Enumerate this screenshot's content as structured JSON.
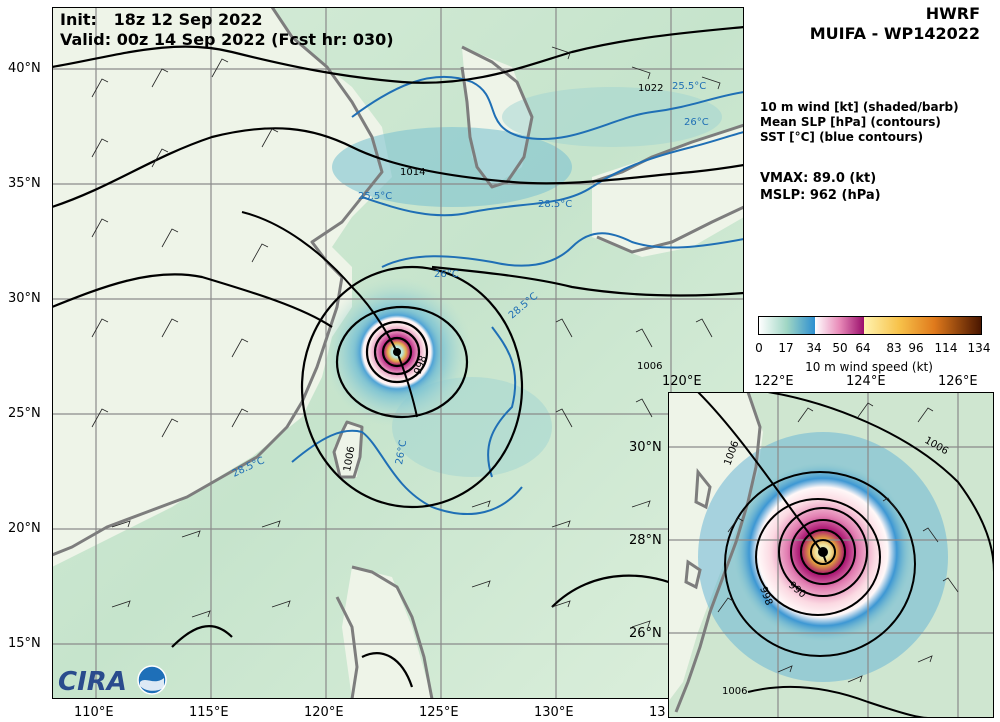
{
  "header": {
    "init": "Init:   18z 12 Sep 2022",
    "valid": "Valid: 00z 14 Sep 2022 (Fcst hr: 030)"
  },
  "model": {
    "name": "HWRF",
    "storm": "MUIFA - WP142022"
  },
  "fields": [
    "10 m wind [kt] (shaded/barb)",
    "Mean SLP [hPa] (contours)",
    "SST [°C] (blue contours)"
  ],
  "stats": {
    "vmax": "VMAX:  89.0 (kt)",
    "mslp": "MSLP:  962 (hPa)"
  },
  "colorbar": {
    "ticks": [
      "0",
      "17",
      "34",
      "50",
      "64",
      "83",
      "96",
      "114",
      "134"
    ],
    "title": "10 m wind speed (kt)"
  },
  "main_map": {
    "lon_labels": [
      "110°E",
      "115°E",
      "120°E",
      "125°E",
      "130°E",
      "13"
    ],
    "lat_labels": [
      "40°N",
      "35°N",
      "30°N",
      "25°N",
      "20°N",
      "15°N"
    ],
    "slp_labels": [
      "1022",
      "1014",
      "1006",
      "998",
      "1006"
    ],
    "sst_labels": [
      "25.5°C",
      "26°C",
      "25.5°C",
      "28.5°C",
      "26°C",
      "28.5°C",
      "26°C",
      "28.5°C"
    ]
  },
  "inset_map": {
    "lon_labels": [
      "120°E",
      "122°E",
      "124°E",
      "126°E"
    ],
    "lat_labels": [
      "30°N",
      "28°N",
      "26°N"
    ],
    "slp_labels": [
      "1006",
      "1006",
      "998",
      "990",
      "1006"
    ]
  },
  "storm_center": {
    "lon": 123.1,
    "lat": 27.6
  },
  "colors": {
    "land": "#eef3e7",
    "ocean": "#cfe7d2",
    "sst_contour": "#1f6fb5",
    "coast": "#7d7d7d",
    "grid": "#8a8a8a"
  },
  "logo": {
    "text": "CIRA"
  }
}
